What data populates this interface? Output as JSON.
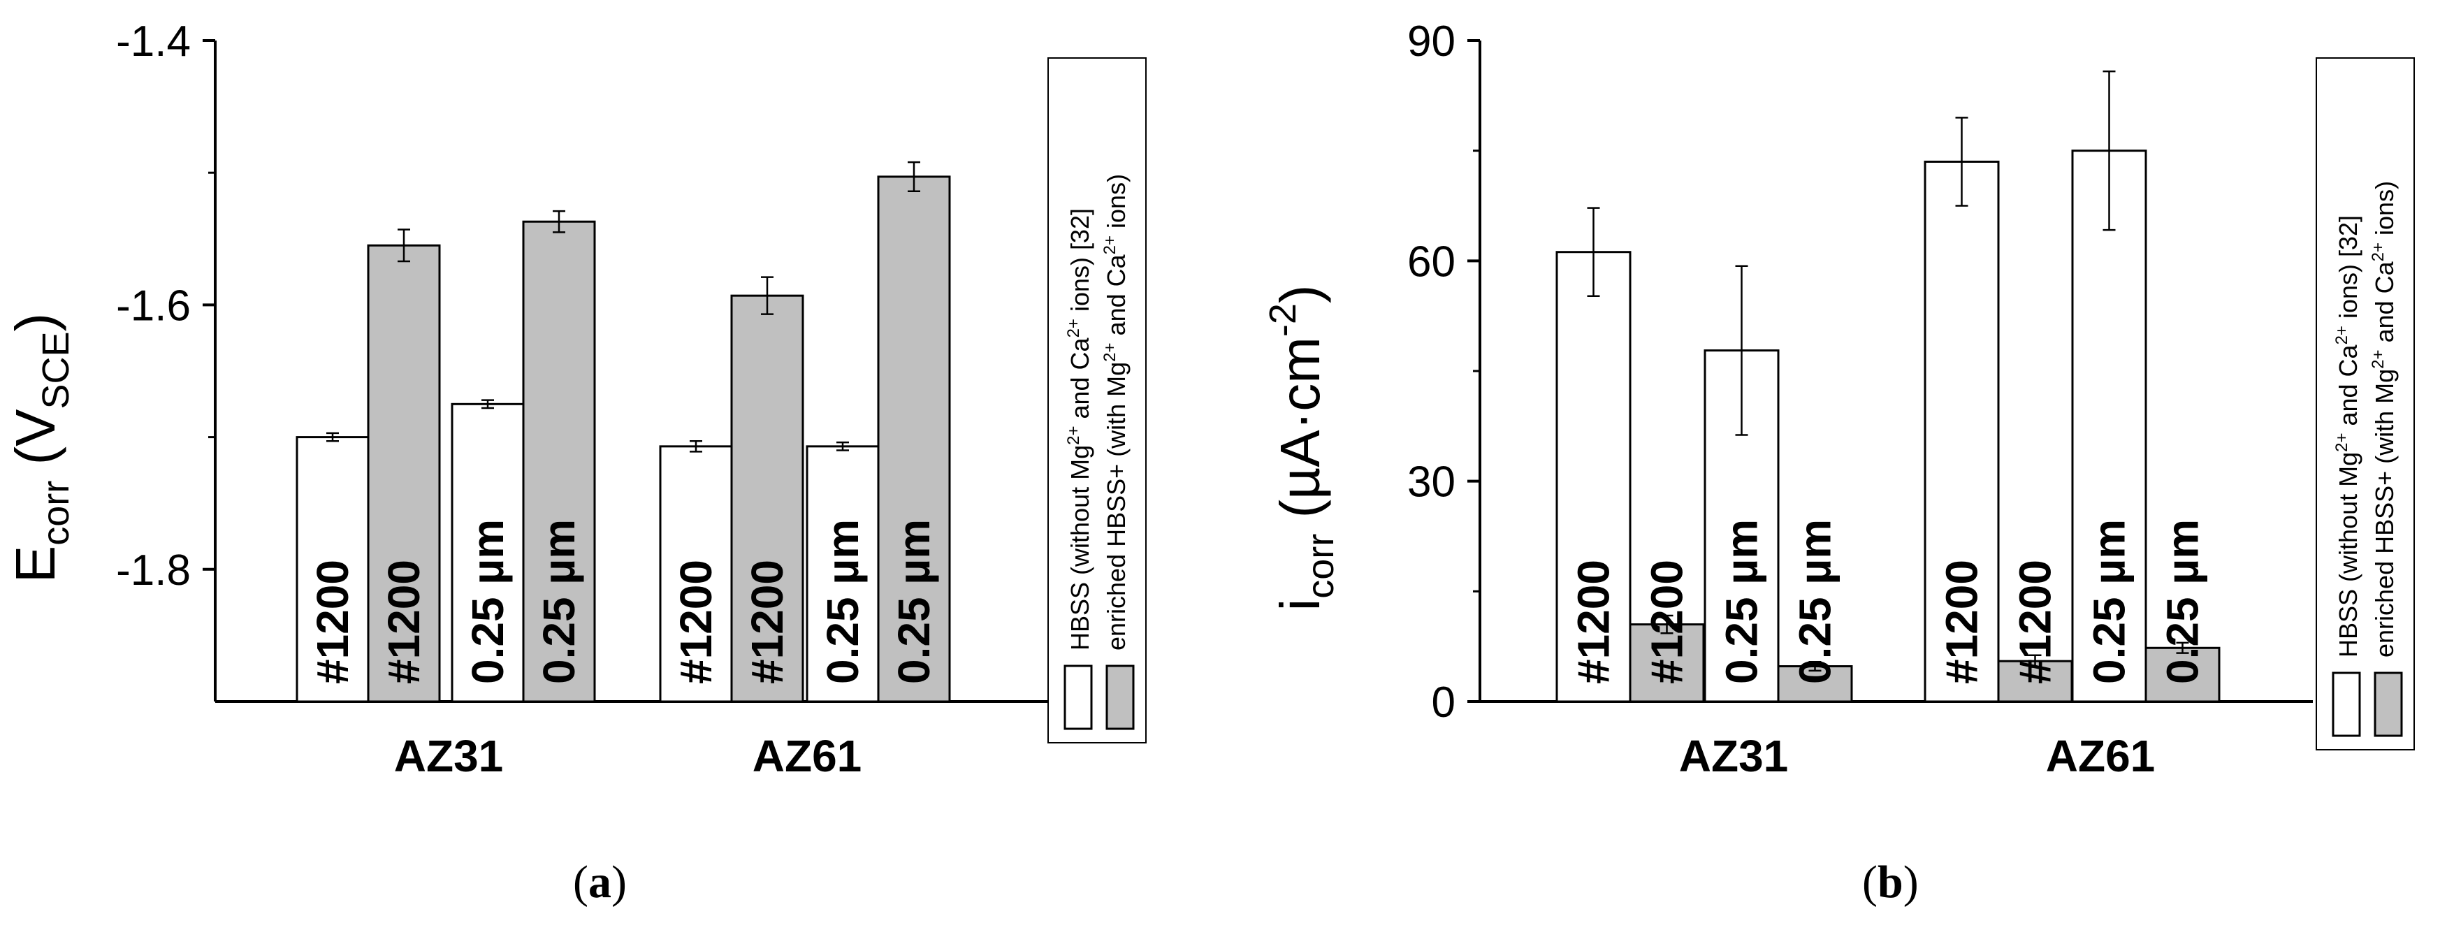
{
  "panels": [
    {
      "caption": "a",
      "chart_data": {
        "type": "bar",
        "ylabel_main": "E",
        "ylabel_sub": "corr",
        "ylabel_unit_pre": "(V",
        "ylabel_unit_sub": "SCE",
        "ylabel_unit_post": ")",
        "ylim": [
          -1.9,
          -1.4
        ],
        "yticks": [
          -1.4,
          -1.6,
          -1.8
        ],
        "ytick_labels": [
          "-1.4",
          "-1.6",
          "-1.8"
        ],
        "categories": [
          "AZ31",
          "AZ61"
        ],
        "series": [
          {
            "name": "HBSS (without Mg2+ and Ca2+ ions) [32]",
            "color": "#ffffff"
          },
          {
            "name": "enriched HBSS+ (with Mg2+ and Ca2+ ions)",
            "color": "#c0c0c0"
          }
        ],
        "bars": [
          {
            "group": "AZ31",
            "series": 0,
            "label": "#1200",
            "value": -1.7,
            "error": 0.003
          },
          {
            "group": "AZ31",
            "series": 1,
            "label": "#1200",
            "value": -1.555,
            "error": 0.012
          },
          {
            "group": "AZ31",
            "series": 0,
            "label": "0.25 µm",
            "value": -1.675,
            "error": 0.003
          },
          {
            "group": "AZ31",
            "series": 1,
            "label": "0.25 µm",
            "value": -1.537,
            "error": 0.008
          },
          {
            "group": "AZ61",
            "series": 0,
            "label": "#1200",
            "value": -1.707,
            "error": 0.004
          },
          {
            "group": "AZ61",
            "series": 1,
            "label": "#1200",
            "value": -1.593,
            "error": 0.014
          },
          {
            "group": "AZ61",
            "series": 0,
            "label": "0.25 µm",
            "value": -1.707,
            "error": 0.003
          },
          {
            "group": "AZ61",
            "series": 1,
            "label": "0.25 µm",
            "value": -1.503,
            "error": 0.011
          }
        ]
      }
    },
    {
      "caption": "b",
      "chart_data": {
        "type": "bar",
        "ylabel_main": "i",
        "ylabel_sub": "corr",
        "ylabel_unit_pre": "(µA·cm",
        "ylabel_unit_sup": "-2",
        "ylabel_unit_post": ")",
        "ylim": [
          0,
          90
        ],
        "yticks": [
          0,
          30,
          60,
          90
        ],
        "ytick_labels": [
          "0",
          "30",
          "60",
          "90"
        ],
        "categories": [
          "AZ31",
          "AZ61"
        ],
        "series": [
          {
            "name": "HBSS (without Mg2+ and Ca2+ ions) [32]",
            "color": "#ffffff"
          },
          {
            "name": "enriched HBSS+ (with Mg2+ and Ca2+ ions)",
            "color": "#c0c0c0"
          }
        ],
        "bars": [
          {
            "group": "AZ31",
            "series": 0,
            "label": "#1200",
            "value": 61.2,
            "error": 6.0
          },
          {
            "group": "AZ31",
            "series": 1,
            "label": "#1200",
            "value": 10.5,
            "error": 1.2
          },
          {
            "group": "AZ31",
            "series": 0,
            "label": "0.25 µm",
            "value": 47.8,
            "error": 11.5
          },
          {
            "group": "AZ31",
            "series": 1,
            "label": "0.25 µm",
            "value": 4.8,
            "error": 0.6
          },
          {
            "group": "AZ61",
            "series": 0,
            "label": "#1200",
            "value": 73.5,
            "error": 6.0
          },
          {
            "group": "AZ61",
            "series": 1,
            "label": "#1200",
            "value": 5.5,
            "error": 0.8
          },
          {
            "group": "AZ61",
            "series": 0,
            "label": "0.25 µm",
            "value": 75.0,
            "error": 10.8
          },
          {
            "group": "AZ61",
            "series": 1,
            "label": "0.25 µm",
            "value": 7.3,
            "error": 0.7
          }
        ]
      }
    }
  ],
  "legend": {
    "line1": "HBSS (without Mg",
    "line1_sup1": "2+",
    "line1_mid": " and Ca",
    "line1_sup2": "2+",
    "line1_end": " ions) [32]",
    "line2": "enriched HBSS+ (with Mg",
    "line2_sup1": "2+",
    "line2_mid": " and Ca",
    "line2_sup2": "2+",
    "line2_end": " ions)"
  }
}
